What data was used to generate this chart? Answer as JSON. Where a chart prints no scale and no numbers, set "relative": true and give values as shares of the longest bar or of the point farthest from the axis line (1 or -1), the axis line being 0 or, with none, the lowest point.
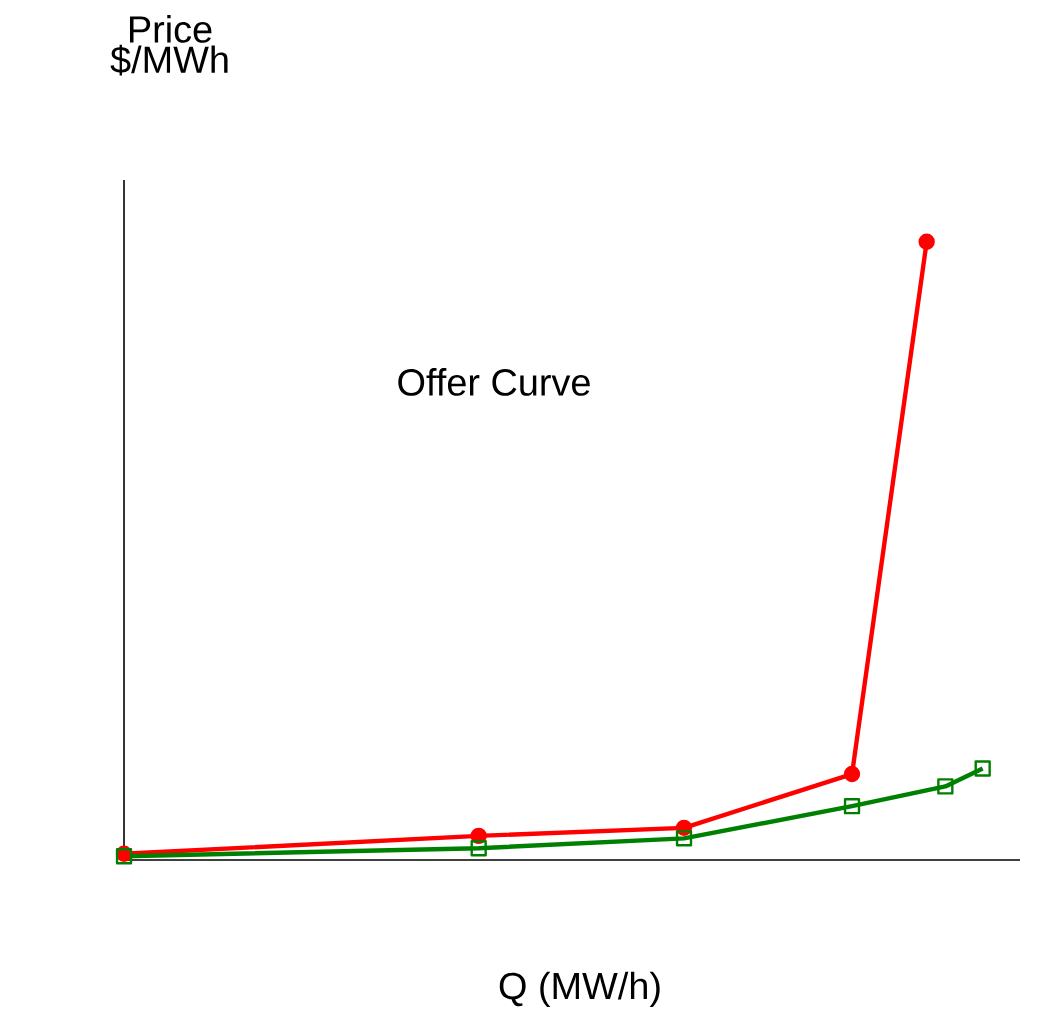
{
  "chart_data": {
    "type": "line",
    "relative": true,
    "ylabel": "Price $/MWh",
    "xlabel": "Q (MW/h)",
    "annotations": [
      "Offer Curve"
    ],
    "categories": [
      null,
      null,
      null,
      null,
      null,
      null,
      null,
      null,
      null,
      null,
      null,
      null,
      null,
      null,
      null,
      null,
      null,
      null,
      null,
      null,
      null,
      null,
      null,
      null,
      null,
      null,
      null,
      null,
      null,
      null,
      null,
      null,
      null,
      null,
      null,
      null,
      null,
      null,
      null,
      null,
      null,
      null,
      null,
      null,
      null,
      null,
      null,
      null,
      null
    ],
    "series": [
      {
        "color": "#ff0000",
        "marker": "circle",
        "values": [
          0.01,
          null,
          null,
          null,
          null,
          null,
          null,
          null,
          null,
          null,
          null,
          null,
          null,
          null,
          null,
          null,
          null,
          null,
          null,
          0.039,
          null,
          null,
          null,
          null,
          null,
          null,
          null,
          null,
          null,
          null,
          0.052,
          null,
          null,
          null,
          null,
          null,
          null,
          null,
          null,
          0.139,
          null,
          null,
          null,
          1,
          null,
          null,
          null,
          null,
          null
        ]
      },
      {
        "color": "#008000",
        "marker": "square",
        "values": [
          0.006,
          null,
          null,
          null,
          null,
          null,
          null,
          null,
          null,
          null,
          null,
          null,
          null,
          null,
          null,
          null,
          null,
          null,
          null,
          0.019,
          null,
          null,
          null,
          null,
          null,
          null,
          null,
          null,
          null,
          null,
          0.035,
          null,
          null,
          null,
          null,
          null,
          null,
          null,
          null,
          0.087,
          null,
          null,
          null,
          null,
          0.119,
          null,
          0.148,
          null,
          null
        ]
      }
    ]
  }
}
